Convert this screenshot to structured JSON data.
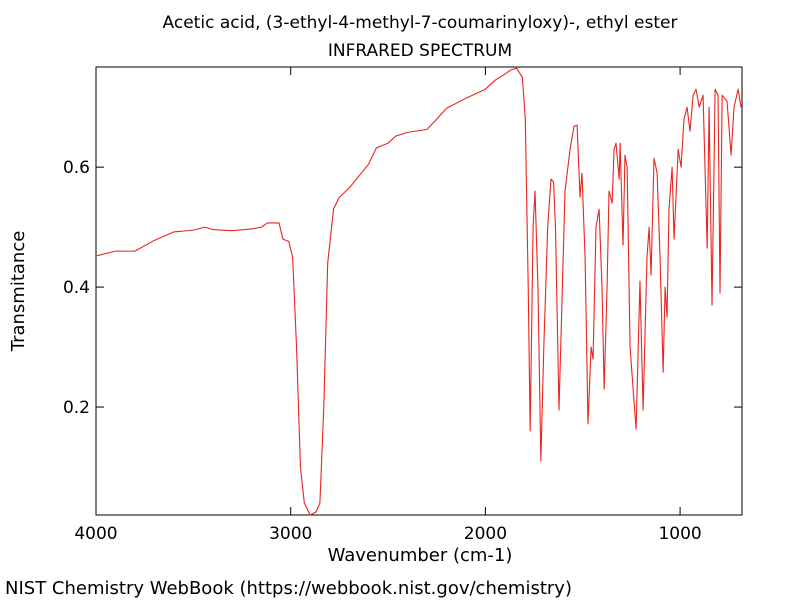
{
  "chart_data": {
    "type": "line",
    "title": "Acetic acid, (3-ethyl-4-methyl-7-coumarinyloxy)-, ethyl ester",
    "subtitle": "INFRARED SPECTRUM",
    "xlabel": "Wavenumber (cm-1)",
    "ylabel": "Transmitance",
    "color": "#e8251f",
    "xlim": [
      4000,
      682
    ],
    "xticks": [
      4000,
      3000,
      2000,
      1000
    ],
    "ylim": [
      0.02,
      0.767
    ],
    "yticks": [
      0.2,
      0.4,
      0.6
    ],
    "x": [
      4000,
      3900,
      3800,
      3700,
      3600,
      3500,
      3440,
      3400,
      3300,
      3200,
      3150,
      3120,
      3060,
      3040,
      3010,
      2990,
      2970,
      2950,
      2930,
      2900,
      2870,
      2850,
      2830,
      2810,
      2780,
      2750,
      2700,
      2600,
      2560,
      2500,
      2460,
      2400,
      2300,
      2250,
      2200,
      2100,
      2000,
      1950,
      1900,
      1870,
      1840,
      1810,
      1795,
      1780,
      1770,
      1755,
      1745,
      1730,
      1715,
      1700,
      1680,
      1663,
      1650,
      1640,
      1622,
      1591,
      1565,
      1545,
      1529,
      1514,
      1504,
      1488,
      1473,
      1457,
      1447,
      1432,
      1416,
      1401,
      1390,
      1375,
      1365,
      1349,
      1339,
      1329,
      1313,
      1308,
      1293,
      1283,
      1272,
      1257,
      1226,
      1206,
      1190,
      1170,
      1159,
      1149,
      1134,
      1118,
      1103,
      1087,
      1077,
      1067,
      1057,
      1041,
      1031,
      1021,
      1010,
      995,
      980,
      964,
      949,
      933,
      918,
      902,
      882,
      861,
      851,
      836,
      820,
      805,
      795,
      784,
      759,
      738,
      723,
      702,
      687
    ],
    "values": [
      0.452,
      0.46,
      0.46,
      0.478,
      0.492,
      0.495,
      0.5,
      0.496,
      0.494,
      0.497,
      0.5,
      0.507,
      0.507,
      0.48,
      0.476,
      0.45,
      0.3,
      0.1,
      0.04,
      0.02,
      0.025,
      0.04,
      0.2,
      0.44,
      0.53,
      0.55,
      0.565,
      0.605,
      0.632,
      0.64,
      0.652,
      0.658,
      0.663,
      0.68,
      0.698,
      0.715,
      0.73,
      0.745,
      0.755,
      0.762,
      0.765,
      0.75,
      0.68,
      0.4,
      0.16,
      0.5,
      0.56,
      0.4,
      0.11,
      0.3,
      0.5,
      0.58,
      0.575,
      0.5,
      0.195,
      0.56,
      0.63,
      0.668,
      0.67,
      0.55,
      0.59,
      0.45,
      0.172,
      0.3,
      0.28,
      0.5,
      0.53,
      0.4,
      0.23,
      0.4,
      0.56,
      0.54,
      0.63,
      0.64,
      0.58,
      0.64,
      0.47,
      0.62,
      0.6,
      0.3,
      0.163,
      0.41,
      0.195,
      0.45,
      0.5,
      0.42,
      0.615,
      0.59,
      0.45,
      0.258,
      0.4,
      0.35,
      0.53,
      0.6,
      0.48,
      0.55,
      0.63,
      0.6,
      0.68,
      0.7,
      0.66,
      0.72,
      0.73,
      0.7,
      0.72,
      0.465,
      0.7,
      0.37,
      0.73,
      0.72,
      0.39,
      0.72,
      0.71,
      0.62,
      0.7,
      0.73,
      0.7
    ]
  },
  "footer": "NIST Chemistry WebBook (https://webbook.nist.gov/chemistry)"
}
